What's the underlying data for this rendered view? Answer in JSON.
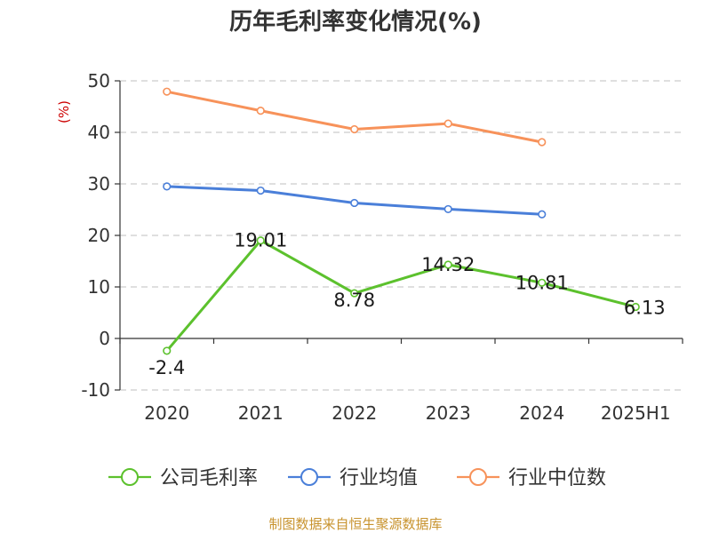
{
  "chart_data": {
    "type": "line",
    "title": "历年毛利率变化情况(%)",
    "ylabel": "(%)",
    "xlabel": "",
    "categories": [
      "2020",
      "2021",
      "2022",
      "2023",
      "2024",
      "2025H1"
    ],
    "ylim": [
      -10,
      50
    ],
    "yticks": [
      "-10",
      "0",
      "10",
      "20",
      "30",
      "40",
      "50"
    ],
    "grid": true,
    "legend_position": "bottom",
    "series": [
      {
        "name": "公司毛利率",
        "color": "#5cc12d",
        "values": [
          -2.4,
          19.01,
          8.78,
          14.32,
          10.81,
          6.13
        ],
        "labels": [
          "-2.4",
          "19.01",
          "8.78",
          "14.32",
          "10.81",
          "6.13"
        ]
      },
      {
        "name": "行业均值",
        "color": "#4a7fd9",
        "values": [
          29.5,
          28.7,
          26.3,
          25.1,
          24.1,
          null
        ]
      },
      {
        "name": "行业中位数",
        "color": "#f7925a",
        "values": [
          47.9,
          44.2,
          40.6,
          41.7,
          38.1,
          null
        ]
      }
    ]
  },
  "source_note": "制图数据来自恒生聚源数据库",
  "colors": {
    "ylabel": "#cc0000",
    "source": "#c8932e",
    "axis": "#333333",
    "grid": "#cccccc"
  }
}
